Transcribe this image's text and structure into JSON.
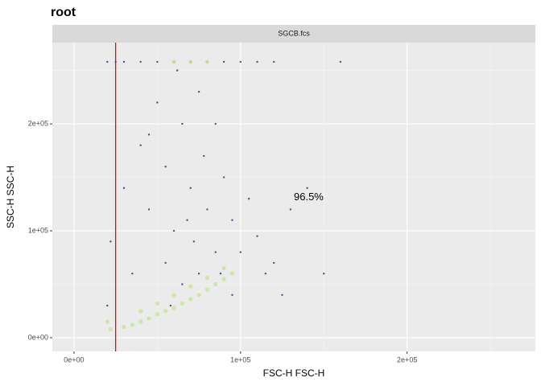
{
  "chart_data": {
    "type": "scatter",
    "title": "root",
    "panel": "SGCB.fcs",
    "xlabel": "FSC-H FSC-H",
    "ylabel": "SSC-H SSC-H",
    "xlim": [
      -13000,
      277000
    ],
    "ylim": [
      -12800,
      276000
    ],
    "xticks": [
      {
        "value": 0,
        "label": "0e+00"
      },
      {
        "value": 100000,
        "label": "1e+05"
      },
      {
        "value": 200000,
        "label": "2e+05"
      }
    ],
    "yticks": [
      {
        "value": 0,
        "label": "0e+00"
      },
      {
        "value": 100000,
        "label": "1e+05"
      },
      {
        "value": 200000,
        "label": "2e+05"
      }
    ],
    "xminor": [
      50000,
      150000,
      250000
    ],
    "yminor": [
      50000,
      150000,
      250000
    ],
    "grid": true,
    "series": [
      {
        "color": "#3f3a8c",
        "x": [
          20000,
          22000,
          30000,
          35000,
          40000,
          45000,
          50000,
          55000,
          60000,
          62000,
          65000,
          70000,
          72000,
          75000,
          78000,
          80000,
          85000,
          88000,
          90000,
          95000,
          100000,
          105000,
          110000,
          115000,
          120000,
          125000,
          130000,
          140000,
          150000,
          160000,
          20000,
          25000,
          30000,
          40000,
          50000,
          60000,
          70000,
          80000,
          90000,
          100000,
          110000,
          120000,
          55000,
          65000,
          75000,
          85000,
          95000,
          45000,
          58000,
          68000
        ],
        "values": [
          30000,
          90000,
          140000,
          60000,
          180000,
          120000,
          220000,
          160000,
          100000,
          250000,
          200000,
          140000,
          90000,
          230000,
          170000,
          120000,
          200000,
          60000,
          150000,
          110000,
          80000,
          130000,
          95000,
          60000,
          70000,
          40000,
          120000,
          140000,
          60000,
          258000,
          258000,
          258000,
          258000,
          258000,
          258000,
          258000,
          258000,
          258000,
          258000,
          258000,
          258000,
          258000,
          70000,
          50000,
          60000,
          80000,
          40000,
          190000,
          30000,
          110000
        ]
      },
      {
        "color": "#c7e59a",
        "x": [
          30000,
          35000,
          40000,
          45000,
          50000,
          55000,
          60000,
          65000,
          70000,
          75000,
          80000,
          85000,
          90000,
          95000,
          40000,
          50000,
          60000,
          70000,
          80000,
          90000,
          20000,
          22000,
          60000,
          70000,
          80000
        ],
        "values": [
          10000,
          12000,
          15000,
          18000,
          22000,
          25000,
          28000,
          32000,
          36000,
          40000,
          45000,
          50000,
          55000,
          60000,
          25000,
          32000,
          40000,
          48000,
          56000,
          65000,
          15000,
          8000,
          258000,
          258000,
          258000
        ]
      }
    ],
    "gate": {
      "x": 25000,
      "color": "#ff0000"
    },
    "annotation": {
      "text": "96.5%",
      "x": 132000,
      "y": 131000
    }
  }
}
